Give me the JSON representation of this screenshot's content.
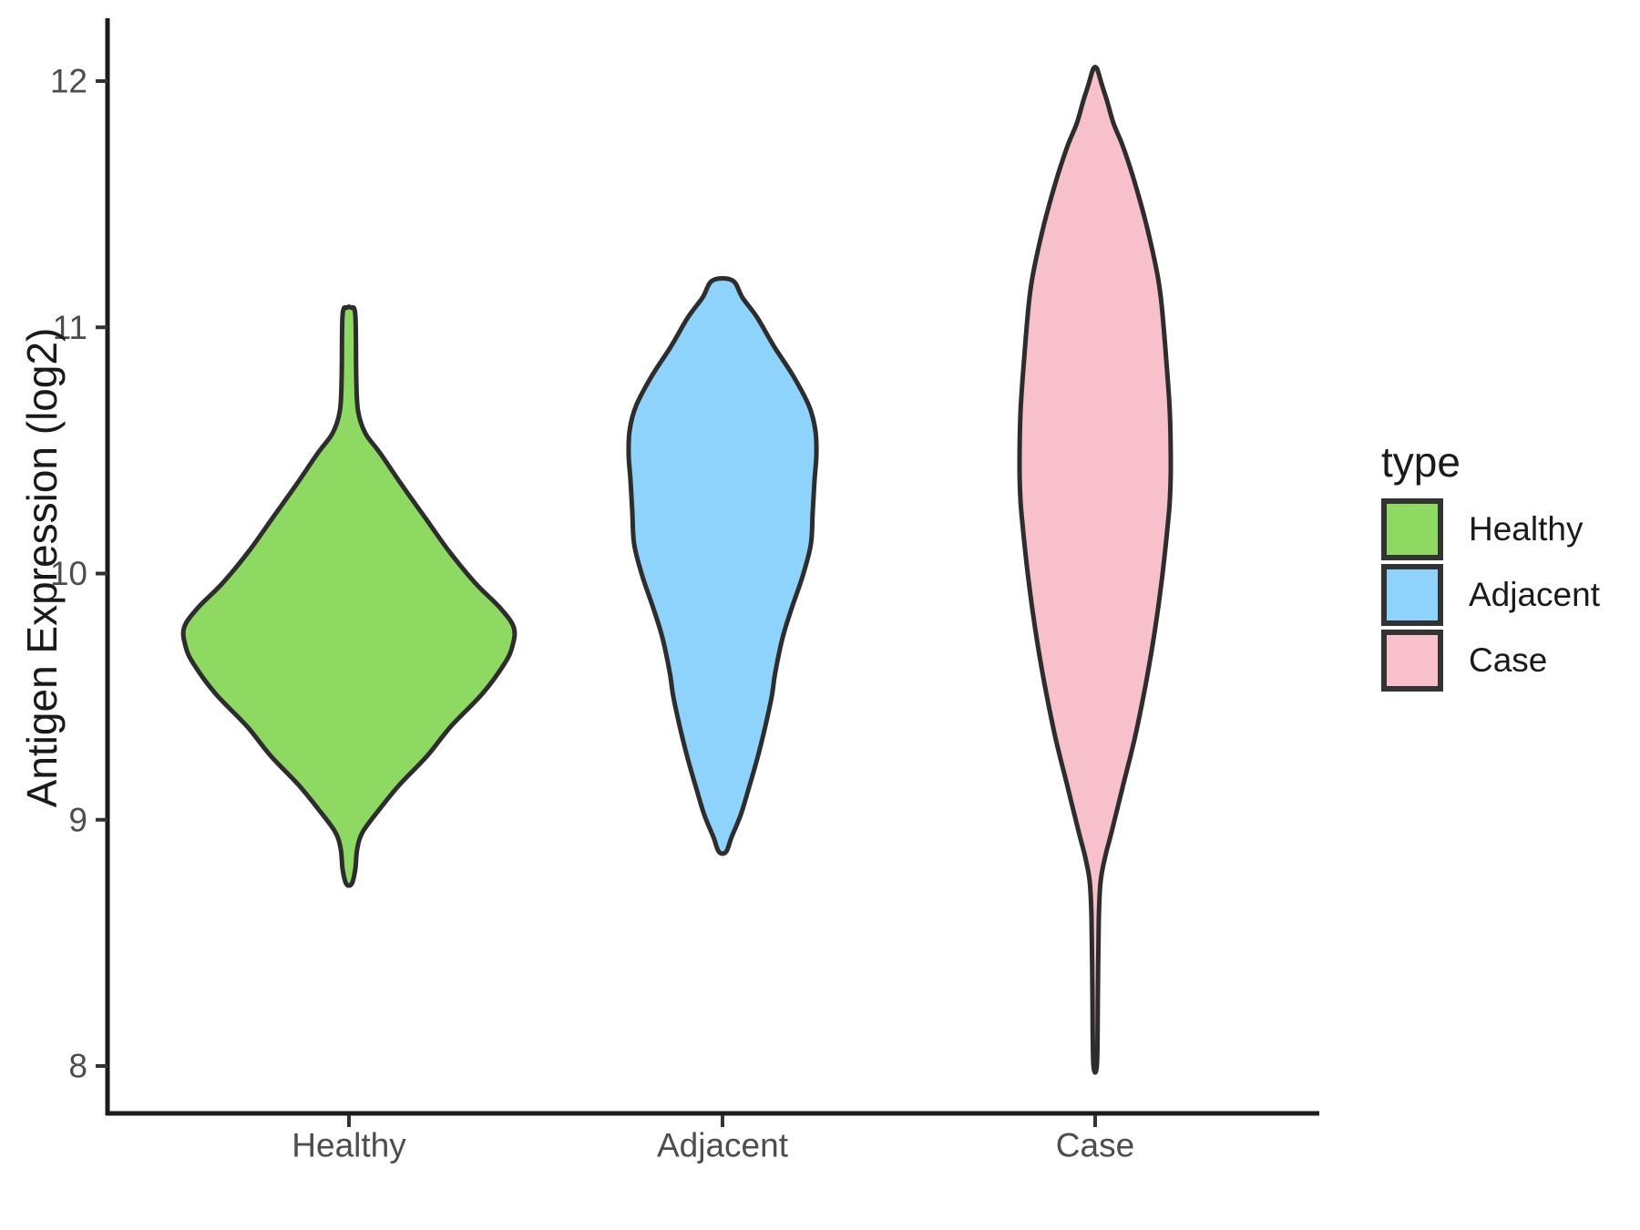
{
  "chart_data": {
    "type": "violin",
    "title": "",
    "xlabel": "",
    "ylabel": "Antigen Expression (log2)",
    "ylim": [
      7.8,
      12.26
    ],
    "grid": false,
    "yticks": [
      {
        "value": 8,
        "label": "8"
      },
      {
        "value": 9,
        "label": "9"
      },
      {
        "value": 10,
        "label": "10"
      },
      {
        "value": 11,
        "label": "11"
      },
      {
        "value": 12,
        "label": "12"
      }
    ],
    "categories": [
      "Healthy",
      "Adjacent",
      "Case"
    ],
    "legend": {
      "title": "type",
      "position": "right",
      "entries": [
        {
          "label": "Healthy",
          "color": "#8ed962"
        },
        {
          "label": "Adjacent",
          "color": "#8ed3fc"
        },
        {
          "label": "Case",
          "color": "#f7c0cb"
        }
      ]
    },
    "style": {
      "outline_color": "#2d2d2d",
      "outline_width": 5,
      "axis_color": "#1c1c1c",
      "tick_color": "#333333",
      "tick_label_color": "#4d4d4d",
      "title_color": "#1a1a1a"
    },
    "profile_units": "pairs of [y_value_log2, half_width_px]",
    "series": [
      {
        "name": "Healthy",
        "fill": "#8ed962",
        "min": 8.74,
        "max": 11.08,
        "peak_value": 9.78,
        "profile": [
          [
            11.08,
            2
          ],
          [
            11.05,
            7
          ],
          [
            10.8,
            8
          ],
          [
            10.66,
            10
          ],
          [
            10.57,
            18
          ],
          [
            10.49,
            34
          ],
          [
            10.36,
            58
          ],
          [
            10.23,
            83
          ],
          [
            10.09,
            110
          ],
          [
            9.96,
            139
          ],
          [
            9.86,
            166
          ],
          [
            9.78,
            181
          ],
          [
            9.7,
            179
          ],
          [
            9.63,
            170
          ],
          [
            9.51,
            146
          ],
          [
            9.38,
            112
          ],
          [
            9.26,
            86
          ],
          [
            9.14,
            55
          ],
          [
            9.04,
            33
          ],
          [
            8.95,
            15
          ],
          [
            8.88,
            9
          ],
          [
            8.8,
            7
          ],
          [
            8.74,
            3
          ]
        ]
      },
      {
        "name": "Adjacent",
        "fill": "#8ed3fc",
        "min": 8.87,
        "max": 11.19,
        "peak_value": 10.48,
        "profile": [
          [
            11.19,
            11
          ],
          [
            11.12,
            22
          ],
          [
            11.04,
            38
          ],
          [
            10.92,
            57
          ],
          [
            10.8,
            78
          ],
          [
            10.68,
            95
          ],
          [
            10.58,
            102
          ],
          [
            10.48,
            103
          ],
          [
            10.38,
            101
          ],
          [
            10.25,
            99
          ],
          [
            10.12,
            97
          ],
          [
            9.99,
            88
          ],
          [
            9.86,
            76
          ],
          [
            9.74,
            66
          ],
          [
            9.6,
            58
          ],
          [
            9.5,
            54
          ],
          [
            9.38,
            47
          ],
          [
            9.26,
            39
          ],
          [
            9.13,
            29
          ],
          [
            9.02,
            20
          ],
          [
            8.93,
            10
          ],
          [
            8.87,
            4
          ]
        ]
      },
      {
        "name": "Case",
        "fill": "#f7c0cb",
        "min": 8.01,
        "max": 12.05,
        "peak_value": 10.43,
        "profile": [
          [
            12.05,
            2
          ],
          [
            11.99,
            7
          ],
          [
            11.92,
            13
          ],
          [
            11.83,
            20
          ],
          [
            11.74,
            30
          ],
          [
            11.63,
            40
          ],
          [
            11.53,
            48
          ],
          [
            11.42,
            56
          ],
          [
            11.31,
            63
          ],
          [
            11.2,
            69
          ],
          [
            11.09,
            73
          ],
          [
            10.87,
            78
          ],
          [
            10.65,
            82
          ],
          [
            10.43,
            83
          ],
          [
            10.3,
            82
          ],
          [
            10.21,
            80
          ],
          [
            10.0,
            74
          ],
          [
            9.78,
            66
          ],
          [
            9.56,
            56
          ],
          [
            9.34,
            44
          ],
          [
            9.13,
            30
          ],
          [
            8.95,
            18
          ],
          [
            8.85,
            11
          ],
          [
            8.75,
            6
          ],
          [
            8.6,
            4
          ],
          [
            8.3,
            3
          ],
          [
            8.01,
            2
          ]
        ]
      }
    ]
  }
}
